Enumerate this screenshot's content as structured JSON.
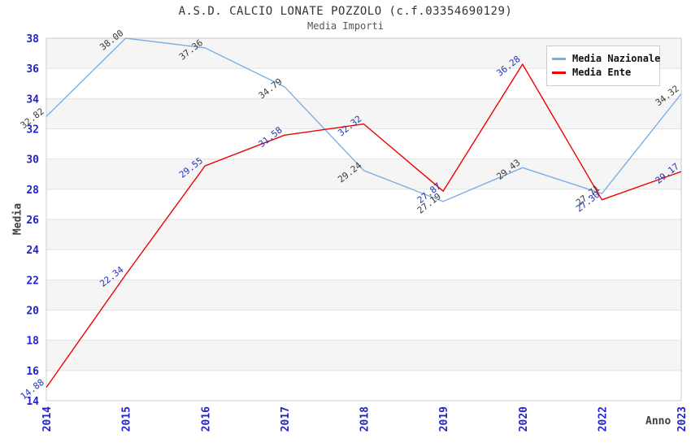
{
  "chart_data": {
    "type": "line",
    "title": "A.S.D. CALCIO LONATE POZZOLO (c.f.03354690129)",
    "subtitle": "Media Importi",
    "xlabel": "Anno",
    "ylabel": "Media",
    "categories": [
      "2014",
      "2015",
      "2016",
      "2017",
      "2018",
      "2019",
      "2020",
      "2022",
      "2023"
    ],
    "series": [
      {
        "name": "Media Nazionale",
        "color": "#7cb0e2",
        "label_color": "#3a3a3a",
        "values": [
          32.82,
          38.0,
          37.36,
          34.79,
          29.24,
          27.19,
          29.43,
          27.71,
          34.32
        ]
      },
      {
        "name": "Media Ente",
        "color": "#ee0000",
        "label_color": "#2233bb",
        "values": [
          14.88,
          22.34,
          29.55,
          31.58,
          32.32,
          27.87,
          36.28,
          27.3,
          29.17
        ]
      }
    ],
    "ylim": [
      14,
      38
    ],
    "ytick_step": 2,
    "grid": true,
    "legend_position": "top-right",
    "styles": {
      "tick_color": "#2222cc",
      "axis_title_color": "#404040",
      "band_color": "#f5f5f5",
      "grid_color": "#e2e2e2",
      "border_color": "#cccccc",
      "title_color": "#333333",
      "subtitle_color": "#555555",
      "label_rotation_deg": -38
    }
  }
}
